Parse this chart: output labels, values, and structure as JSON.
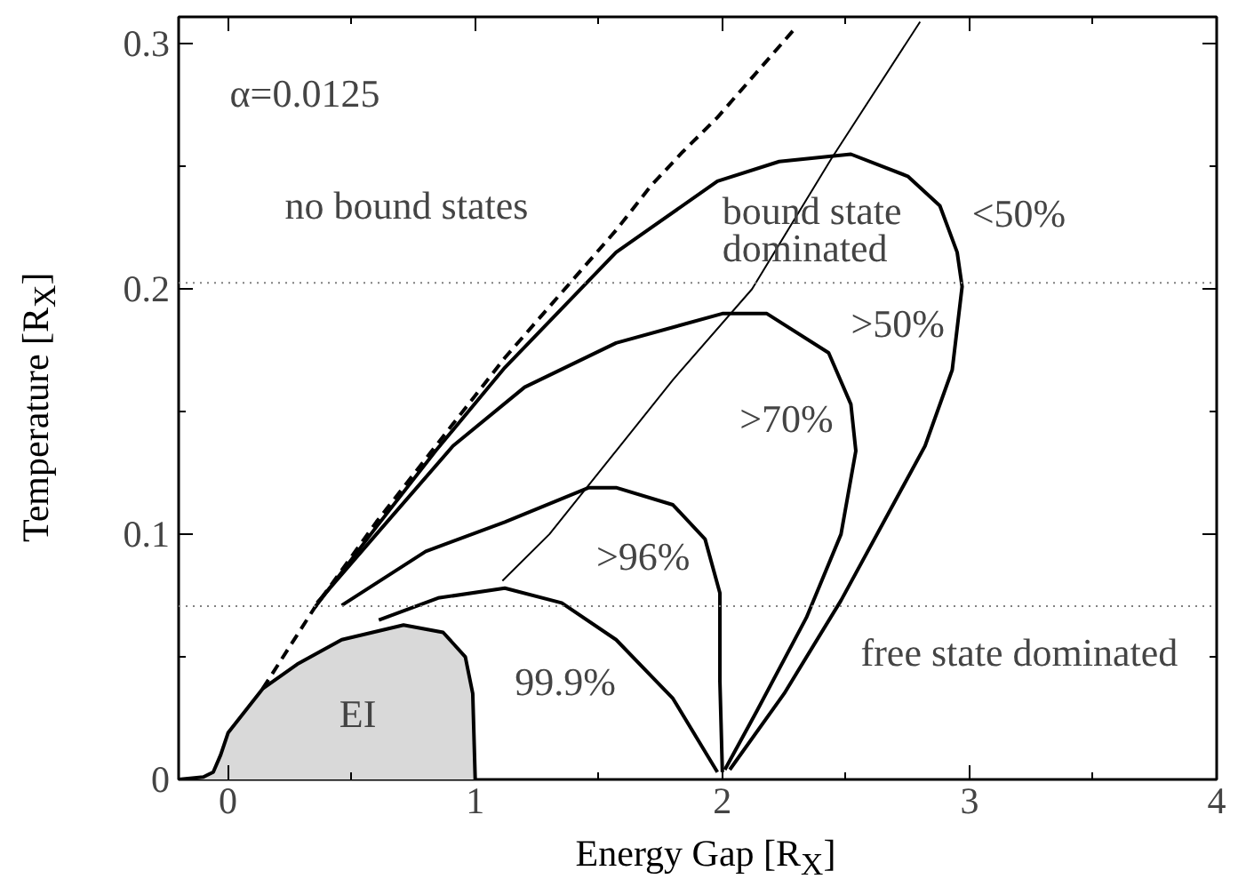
{
  "chart_data": {
    "type": "line",
    "xlabel": "Energy Gap [R$_{X}$]",
    "ylabel": "Temperature [R$_{X}$]",
    "xlim": [
      -0.2,
      4.0
    ],
    "ylim": [
      0,
      0.311
    ],
    "xticks": [
      0,
      1,
      2,
      3,
      4
    ],
    "yticks": [
      0,
      0.1,
      0.2,
      0.3
    ],
    "grid": false,
    "marker": "none",
    "series": [
      {
        "type": "area",
        "color": "#d9d9d9",
        "x": [
          -0.2,
          -0.1,
          -0.06,
          -0.03,
          0,
          0.14,
          0.28,
          0.46,
          0.71,
          0.87,
          0.96,
          0.99,
          1.0
        ],
        "values": [
          0,
          0.001,
          0.003,
          0.01,
          0.019,
          0.037,
          0.047,
          0.057,
          0.063,
          0.06,
          0.05,
          0.035,
          0
        ]
      },
      {
        "color": "#000000",
        "line_style": "dashed",
        "x": [
          0.14,
          0.35,
          0.6,
          0.84,
          1.12,
          1.57,
          1.71,
          1.84,
          1.98,
          2.3
        ],
        "values": [
          0.037,
          0.07,
          0.105,
          0.136,
          0.172,
          0.224,
          0.242,
          0.256,
          0.27,
          0.307
        ]
      },
      {
        "color": "#000000",
        "line_style": "solid",
        "x": [
          0.35,
          0.6,
          0.84,
          1.12,
          1.57,
          1.98,
          2.23,
          2.52,
          2.75,
          2.88,
          2.95,
          2.97,
          2.93,
          2.82,
          2.48,
          2.25,
          2.03
        ],
        "values": [
          0.07,
          0.103,
          0.134,
          0.168,
          0.215,
          0.244,
          0.252,
          0.255,
          0.246,
          0.234,
          0.215,
          0.201,
          0.167,
          0.136,
          0.073,
          0.035,
          0.004
        ]
      },
      {
        "color": "#000000",
        "line_style": "solid",
        "x": [
          0.36,
          0.6,
          0.91,
          1.2,
          1.57,
          2.0,
          2.18,
          2.43,
          2.52,
          2.54,
          2.48,
          2.34,
          2.14,
          2.01
        ],
        "values": [
          0.072,
          0.1,
          0.136,
          0.16,
          0.178,
          0.19,
          0.19,
          0.174,
          0.153,
          0.134,
          0.1,
          0.066,
          0.028,
          0.004
        ]
      },
      {
        "color": "#000000",
        "line_style": "solid",
        "x": [
          0.46,
          0.8,
          1.12,
          1.46,
          1.57,
          1.8,
          1.93,
          1.99,
          1.99,
          2.0
        ],
        "values": [
          0.071,
          0.093,
          0.105,
          0.119,
          0.119,
          0.112,
          0.098,
          0.076,
          0.04,
          0.003
        ]
      },
      {
        "color": "#000000",
        "line_style": "solid",
        "x": [
          0.61,
          0.85,
          1.12,
          1.35,
          1.57,
          1.8,
          1.98
        ],
        "values": [
          0.065,
          0.074,
          0.078,
          0.072,
          0.057,
          0.033,
          0.003
        ]
      },
      {
        "color": "#000000",
        "line_style": "solid",
        "x": [
          1.11,
          1.3,
          1.57,
          1.8,
          2.12,
          2.44,
          2.8
        ],
        "values": [
          0.081,
          0.1,
          0.134,
          0.163,
          0.2,
          0.253,
          0.309
        ]
      }
    ],
    "ref_lines": [
      {
        "axis": "y",
        "value": 0.2025,
        "color": "#808080",
        "line_style": "dotted"
      },
      {
        "axis": "y",
        "value": 0.0707,
        "color": "#808080",
        "line_style": "dotted"
      }
    ],
    "annotations": [
      "α=0.0125",
      "no bound states",
      "bound state\ndominated",
      "<50%",
      ">50%",
      ">70%",
      ">96%",
      "99.9%",
      "EI",
      "free state dominated"
    ]
  }
}
